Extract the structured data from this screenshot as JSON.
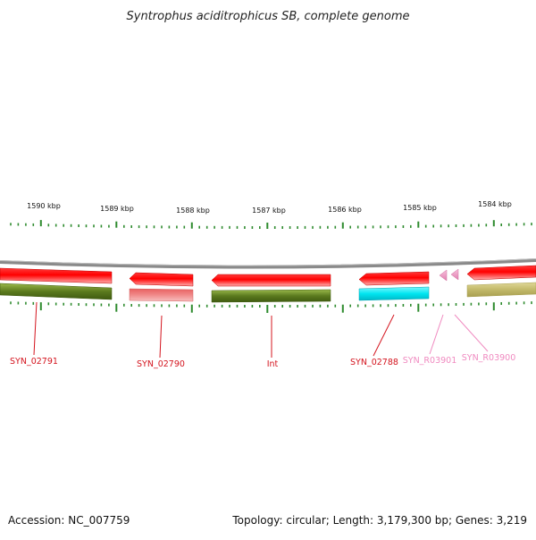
{
  "title": "Syntrophus aciditrophicus SB, complete genome",
  "accession_text": "Accession: NC_007759",
  "topology_text": "Topology: circular; Length: 3,179,300 bp; Genes: 3,219",
  "scale": {
    "unit": "kbp",
    "labels": [
      "1590 kbp",
      "1589 kbp",
      "1588 kbp",
      "1587 kbp",
      "1586 kbp",
      "1585 kbp",
      "1584 kbp"
    ]
  },
  "genes": [
    {
      "id": "SYN_02791",
      "label": "SYN_02791",
      "color": "#d4141e"
    },
    {
      "id": "SYN_02790",
      "label": "SYN_02790",
      "color": "#d4141e"
    },
    {
      "id": "Int",
      "label": "Int",
      "color": "#d4141e"
    },
    {
      "id": "SYN_02788",
      "label": "SYN_02788",
      "color": "#d4141e"
    },
    {
      "id": "SYN_R03901",
      "label": "SYN_R03901",
      "color": "#f08ac0"
    },
    {
      "id": "SYN_R03900",
      "label": "SYN_R03900",
      "color": "#f08ac0"
    }
  ],
  "colors": {
    "strand_red": "#ff0000",
    "pink_gene": "#f08080",
    "olive": "#5b7a1e",
    "khaki": "#c2b96a",
    "cyan": "#00e5f0",
    "rna_pink": "#f4a0c8",
    "backbone": "#808080",
    "tick_green": "#2e8b2e"
  }
}
